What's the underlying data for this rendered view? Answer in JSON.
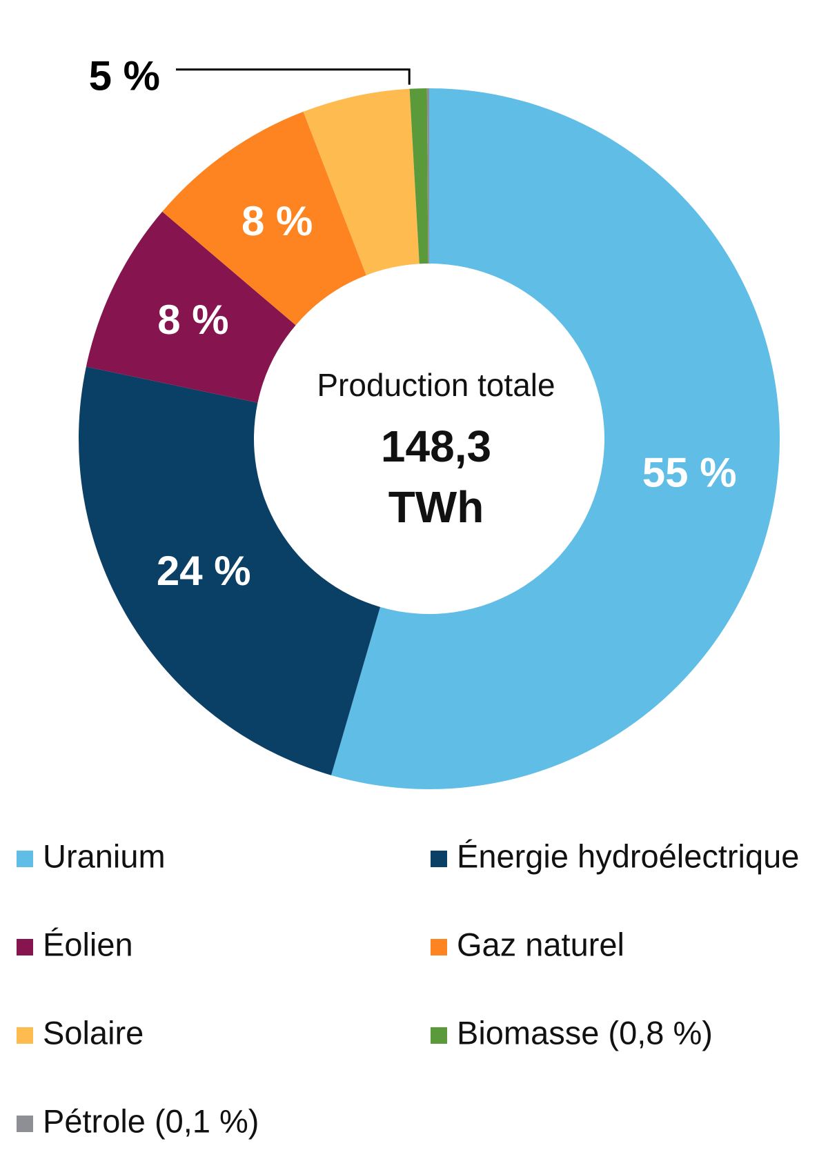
{
  "chart_data": {
    "type": "donut",
    "categories": [
      "Uranium",
      "Énergie hydroélectrique",
      "Éolien",
      "Gaz naturel",
      "Solaire",
      "Biomasse (0,8 %)",
      "Pétrole (0,1 %)"
    ],
    "values": [
      55,
      24,
      8,
      8,
      5,
      0.8,
      0.1
    ],
    "value_labels": [
      "55 %",
      "24 %",
      "8 %",
      "8 %",
      "5 %",
      null,
      null
    ],
    "colors": [
      "#5fbde6",
      "#0a3f66",
      "#86154f",
      "#fd8420",
      "#fdbb50",
      "#5a9a3a",
      "#8e8e95"
    ],
    "total_label": "Production totale",
    "total_value": "148,3",
    "total_unit": "TWh"
  }
}
